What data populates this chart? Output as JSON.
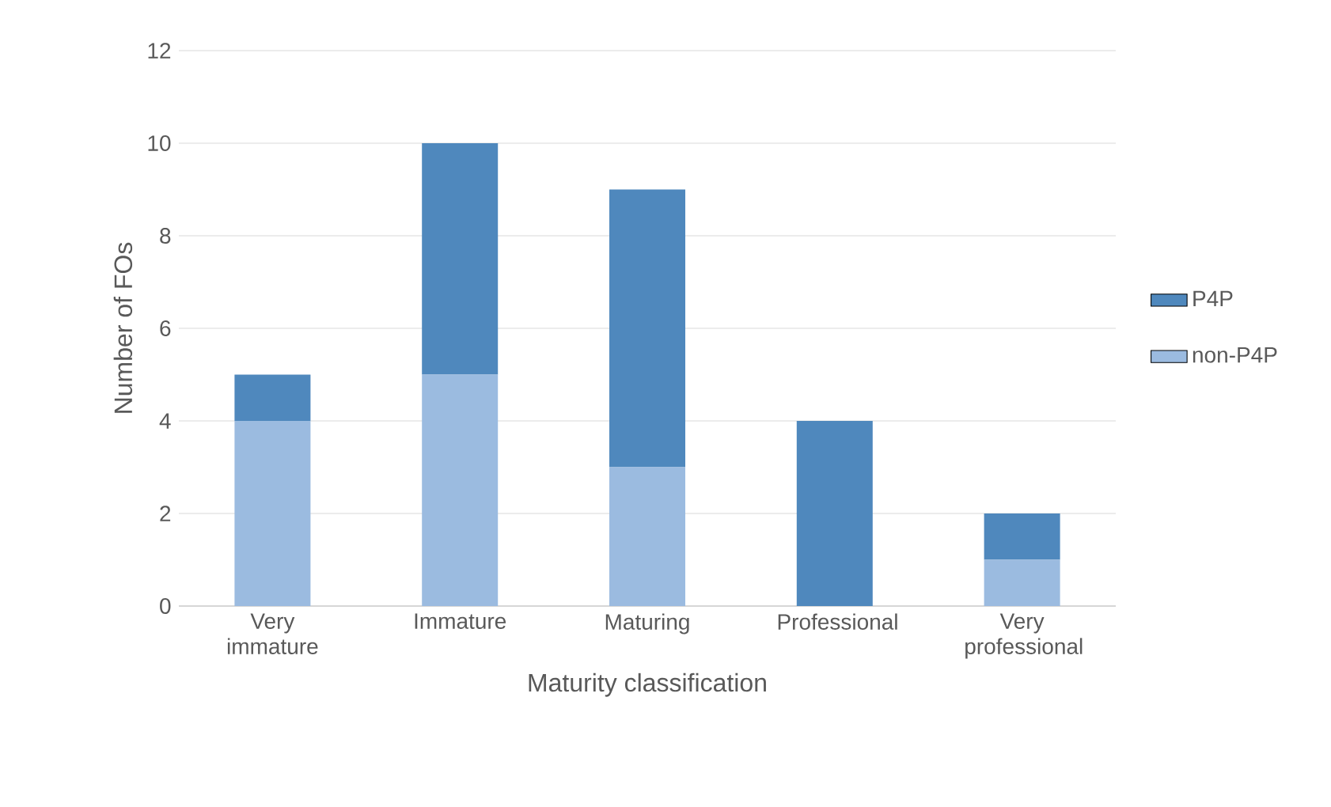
{
  "chart_data": {
    "type": "bar",
    "stacked": true,
    "xlabel": "Maturity classification",
    "ylabel": "Number of FOs",
    "categories": [
      "Very immature",
      "Immature",
      "Maturing",
      "Professional",
      "Very professional"
    ],
    "series": [
      {
        "name": "non-P4P",
        "color": "#9bbbe0",
        "values": [
          4,
          5,
          3,
          0,
          1
        ]
      },
      {
        "name": "P4P",
        "color": "#4f88bd",
        "values": [
          1,
          5,
          6,
          4,
          1
        ]
      }
    ],
    "ylim": [
      0,
      12
    ],
    "yticks": [
      0,
      2,
      4,
      6,
      8,
      10,
      12
    ],
    "grid": "y",
    "legend": "right"
  }
}
